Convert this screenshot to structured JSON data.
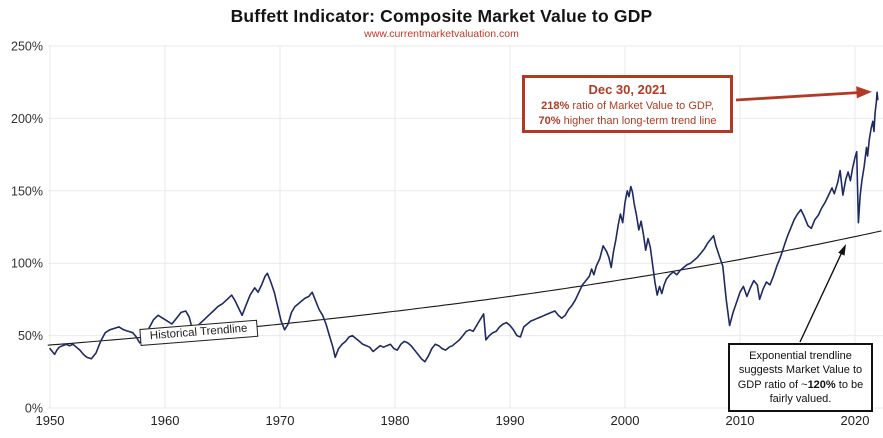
{
  "chart_data": {
    "type": "line",
    "title": "Buffett Indicator: Composite Market Value to GDP",
    "subtitle": "www.currentmarketvaluation.com",
    "xlabel": "",
    "ylabel": "",
    "x_range": [
      1949.8,
      2022.5
    ],
    "y_range": [
      0,
      250
    ],
    "grid": true,
    "legend": "none",
    "x_ticks": {
      "values": [
        1950,
        1960,
        1970,
        1980,
        1990,
        2000,
        2010,
        2020
      ],
      "labels": [
        "1950",
        "1960",
        "1970",
        "1980",
        "1990",
        "2000",
        "2010",
        "2020"
      ]
    },
    "y_ticks": {
      "values": [
        0,
        50,
        100,
        150,
        200,
        250
      ],
      "labels": [
        "0%",
        "50%",
        "100%",
        "150%",
        "200%",
        "250%"
      ]
    },
    "series": [
      {
        "name": "Composite Market Value to GDP",
        "color": "#1f2a63",
        "points": [
          [
            1950.0,
            41
          ],
          [
            1950.2,
            39
          ],
          [
            1950.4,
            37
          ],
          [
            1950.6,
            40
          ],
          [
            1950.8,
            42
          ],
          [
            1951.1,
            43
          ],
          [
            1951.4,
            44
          ],
          [
            1951.7,
            43
          ],
          [
            1952.0,
            44
          ],
          [
            1952.3,
            42
          ],
          [
            1952.6,
            40
          ],
          [
            1952.9,
            37
          ],
          [
            1953.2,
            35
          ],
          [
            1953.6,
            34
          ],
          [
            1954.0,
            38
          ],
          [
            1954.4,
            46
          ],
          [
            1954.8,
            52
          ],
          [
            1955.2,
            54
          ],
          [
            1955.6,
            55
          ],
          [
            1956.0,
            56
          ],
          [
            1956.4,
            54
          ],
          [
            1956.8,
            53
          ],
          [
            1957.2,
            52
          ],
          [
            1957.5,
            49
          ],
          [
            1957.8,
            45
          ],
          [
            1958.2,
            49
          ],
          [
            1958.6,
            55
          ],
          [
            1959.0,
            61
          ],
          [
            1959.4,
            64
          ],
          [
            1959.8,
            62
          ],
          [
            1960.2,
            60
          ],
          [
            1960.6,
            58
          ],
          [
            1961.0,
            62
          ],
          [
            1961.4,
            66
          ],
          [
            1961.8,
            67
          ],
          [
            1962.1,
            63
          ],
          [
            1962.4,
            54
          ],
          [
            1962.7,
            56
          ],
          [
            1963.0,
            58
          ],
          [
            1963.4,
            61
          ],
          [
            1963.8,
            64
          ],
          [
            1964.2,
            67
          ],
          [
            1964.6,
            70
          ],
          [
            1965.0,
            72
          ],
          [
            1965.4,
            75
          ],
          [
            1965.8,
            78
          ],
          [
            1966.1,
            74
          ],
          [
            1966.4,
            69
          ],
          [
            1966.7,
            64
          ],
          [
            1967.0,
            70
          ],
          [
            1967.4,
            78
          ],
          [
            1967.8,
            83
          ],
          [
            1968.1,
            80
          ],
          [
            1968.4,
            85
          ],
          [
            1968.7,
            91
          ],
          [
            1968.9,
            93
          ],
          [
            1969.2,
            87
          ],
          [
            1969.5,
            80
          ],
          [
            1969.8,
            70
          ],
          [
            1970.1,
            60
          ],
          [
            1970.4,
            54
          ],
          [
            1970.7,
            58
          ],
          [
            1971.0,
            66
          ],
          [
            1971.3,
            70
          ],
          [
            1971.6,
            72
          ],
          [
            1971.9,
            74
          ],
          [
            1972.2,
            76
          ],
          [
            1972.5,
            77
          ],
          [
            1972.8,
            80
          ],
          [
            1973.1,
            74
          ],
          [
            1973.4,
            68
          ],
          [
            1973.7,
            64
          ],
          [
            1974.0,
            58
          ],
          [
            1974.3,
            50
          ],
          [
            1974.6,
            42
          ],
          [
            1974.8,
            35
          ],
          [
            1975.1,
            41
          ],
          [
            1975.4,
            44
          ],
          [
            1975.7,
            46
          ],
          [
            1976.0,
            49
          ],
          [
            1976.3,
            50
          ],
          [
            1976.6,
            48
          ],
          [
            1976.9,
            46
          ],
          [
            1977.2,
            44
          ],
          [
            1977.5,
            43
          ],
          [
            1977.8,
            42
          ],
          [
            1978.1,
            39
          ],
          [
            1978.4,
            41
          ],
          [
            1978.7,
            43
          ],
          [
            1979.0,
            42
          ],
          [
            1979.3,
            43
          ],
          [
            1979.6,
            44
          ],
          [
            1979.9,
            41
          ],
          [
            1980.2,
            40
          ],
          [
            1980.5,
            44
          ],
          [
            1980.8,
            46
          ],
          [
            1981.1,
            45
          ],
          [
            1981.4,
            43
          ],
          [
            1981.7,
            40
          ],
          [
            1982.0,
            37
          ],
          [
            1982.3,
            34
          ],
          [
            1982.6,
            32
          ],
          [
            1982.9,
            36
          ],
          [
            1983.2,
            41
          ],
          [
            1983.5,
            44
          ],
          [
            1983.8,
            43
          ],
          [
            1984.1,
            41
          ],
          [
            1984.4,
            40
          ],
          [
            1984.7,
            42
          ],
          [
            1985.0,
            43
          ],
          [
            1985.3,
            45
          ],
          [
            1985.6,
            47
          ],
          [
            1985.9,
            50
          ],
          [
            1986.2,
            53
          ],
          [
            1986.5,
            54
          ],
          [
            1986.8,
            53
          ],
          [
            1987.1,
            57
          ],
          [
            1987.4,
            61
          ],
          [
            1987.7,
            65
          ],
          [
            1987.9,
            47
          ],
          [
            1988.2,
            50
          ],
          [
            1988.5,
            52
          ],
          [
            1988.8,
            53
          ],
          [
            1989.1,
            56
          ],
          [
            1989.4,
            58
          ],
          [
            1989.7,
            59
          ],
          [
            1990.0,
            57
          ],
          [
            1990.3,
            54
          ],
          [
            1990.6,
            50
          ],
          [
            1990.9,
            49
          ],
          [
            1991.2,
            56
          ],
          [
            1991.5,
            58
          ],
          [
            1991.8,
            60
          ],
          [
            1992.1,
            61
          ],
          [
            1992.4,
            62
          ],
          [
            1992.7,
            63
          ],
          [
            1993.0,
            64
          ],
          [
            1993.3,
            65
          ],
          [
            1993.6,
            66
          ],
          [
            1993.9,
            67
          ],
          [
            1994.2,
            64
          ],
          [
            1994.5,
            62
          ],
          [
            1994.8,
            64
          ],
          [
            1995.1,
            68
          ],
          [
            1995.4,
            71
          ],
          [
            1995.7,
            75
          ],
          [
            1996.0,
            80
          ],
          [
            1996.3,
            85
          ],
          [
            1996.6,
            88
          ],
          [
            1996.9,
            91
          ],
          [
            1997.1,
            96
          ],
          [
            1997.3,
            92
          ],
          [
            1997.5,
            98
          ],
          [
            1997.8,
            103
          ],
          [
            1998.1,
            112
          ],
          [
            1998.4,
            108
          ],
          [
            1998.6,
            104
          ],
          [
            1998.8,
            97
          ],
          [
            1999.0,
            108
          ],
          [
            1999.2,
            116
          ],
          [
            1999.4,
            126
          ],
          [
            1999.6,
            134
          ],
          [
            1999.8,
            128
          ],
          [
            2000.0,
            142
          ],
          [
            2000.2,
            150
          ],
          [
            2000.35,
            146
          ],
          [
            2000.5,
            153
          ],
          [
            2000.65,
            149
          ],
          [
            2000.8,
            141
          ],
          [
            2001.0,
            133
          ],
          [
            2001.2,
            123
          ],
          [
            2001.4,
            129
          ],
          [
            2001.6,
            120
          ],
          [
            2001.8,
            109
          ],
          [
            2002.0,
            117
          ],
          [
            2002.2,
            111
          ],
          [
            2002.4,
            99
          ],
          [
            2002.6,
            87
          ],
          [
            2002.8,
            78
          ],
          [
            2003.0,
            84
          ],
          [
            2003.2,
            79
          ],
          [
            2003.4,
            85
          ],
          [
            2003.6,
            89
          ],
          [
            2003.9,
            92
          ],
          [
            2004.2,
            94
          ],
          [
            2004.5,
            92
          ],
          [
            2004.8,
            95
          ],
          [
            2005.1,
            97
          ],
          [
            2005.4,
            99
          ],
          [
            2005.7,
            100
          ],
          [
            2006.0,
            102
          ],
          [
            2006.3,
            104
          ],
          [
            2006.6,
            107
          ],
          [
            2006.9,
            110
          ],
          [
            2007.2,
            114
          ],
          [
            2007.5,
            117
          ],
          [
            2007.7,
            119
          ],
          [
            2007.9,
            112
          ],
          [
            2008.2,
            105
          ],
          [
            2008.5,
            98
          ],
          [
            2008.8,
            75
          ],
          [
            2009.1,
            57
          ],
          [
            2009.4,
            66
          ],
          [
            2009.7,
            73
          ],
          [
            2010.0,
            80
          ],
          [
            2010.3,
            84
          ],
          [
            2010.6,
            77
          ],
          [
            2010.9,
            83
          ],
          [
            2011.2,
            88
          ],
          [
            2011.5,
            85
          ],
          [
            2011.7,
            75
          ],
          [
            2012.0,
            82
          ],
          [
            2012.3,
            87
          ],
          [
            2012.6,
            85
          ],
          [
            2012.9,
            91
          ],
          [
            2013.2,
            98
          ],
          [
            2013.5,
            104
          ],
          [
            2013.8,
            111
          ],
          [
            2014.1,
            118
          ],
          [
            2014.4,
            124
          ],
          [
            2014.7,
            130
          ],
          [
            2015.0,
            134
          ],
          [
            2015.3,
            137
          ],
          [
            2015.6,
            132
          ],
          [
            2015.9,
            126
          ],
          [
            2016.2,
            124
          ],
          [
            2016.5,
            130
          ],
          [
            2016.8,
            133
          ],
          [
            2017.1,
            138
          ],
          [
            2017.4,
            142
          ],
          [
            2017.7,
            147
          ],
          [
            2018.0,
            152
          ],
          [
            2018.2,
            148
          ],
          [
            2018.5,
            156
          ],
          [
            2018.7,
            164
          ],
          [
            2018.95,
            147
          ],
          [
            2019.2,
            158
          ],
          [
            2019.4,
            163
          ],
          [
            2019.6,
            157
          ],
          [
            2019.8,
            166
          ],
          [
            2020.0,
            173
          ],
          [
            2020.15,
            177
          ],
          [
            2020.3,
            128
          ],
          [
            2020.45,
            147
          ],
          [
            2020.6,
            157
          ],
          [
            2020.8,
            167
          ],
          [
            2021.0,
            180
          ],
          [
            2021.1,
            174
          ],
          [
            2021.25,
            186
          ],
          [
            2021.4,
            193
          ],
          [
            2021.55,
            198
          ],
          [
            2021.65,
            191
          ],
          [
            2021.75,
            204
          ],
          [
            2021.85,
            211
          ],
          [
            2021.92,
            218
          ],
          [
            2021.98,
            213
          ]
        ]
      }
    ],
    "trendline": {
      "label": "Historical Trendline",
      "type": "exponential",
      "start_year": 1950,
      "start_value": 43.5,
      "annual_growth_rate": 0.0143,
      "fair_value": "~120%",
      "color": "#1a1a1a"
    }
  },
  "annotations": {
    "dec2021": {
      "title": "Dec 30, 2021",
      "ratio_bold": "218%",
      "ratio_rest": " ratio of Market Value to GDP,",
      "premium_bold": "70%",
      "premium_rest": " higher than long-term trend line"
    },
    "fair_value": {
      "pre": "Exponential trendline suggests Market Value to GDP ratio of ~",
      "bold": "120%",
      "post": " to be fairly valued."
    }
  },
  "colors": {
    "line": "#1f2a63",
    "trendline": "#1a1a1a",
    "accent_red": "#b23a25",
    "subtitle_red": "#c0392b",
    "grid": "#e9e9e9",
    "tick_text": "#333333"
  }
}
